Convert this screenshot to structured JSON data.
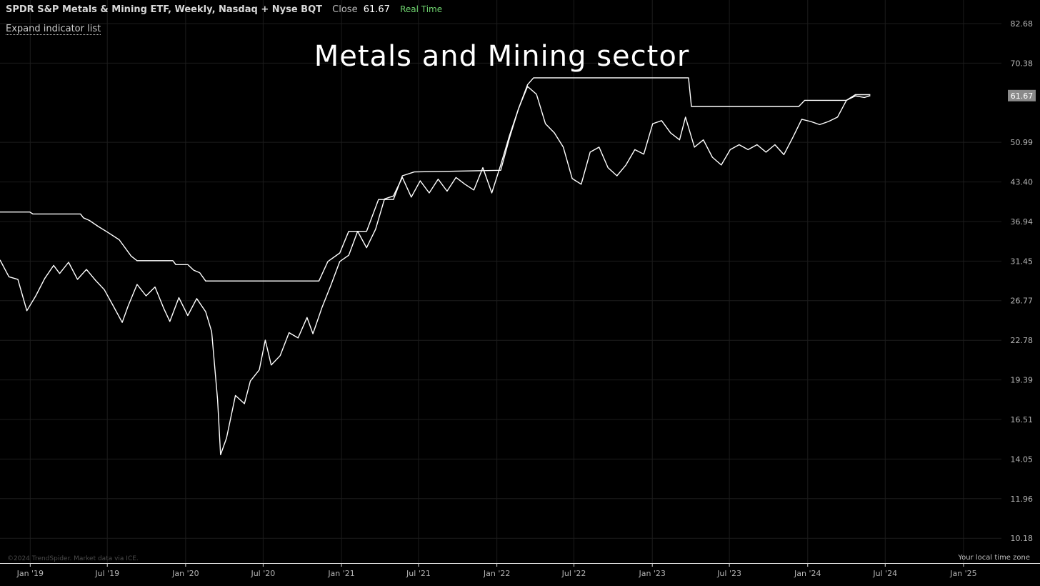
{
  "header": {
    "instrument": "SPDR S&P Metals & Mining ETF, Weekly, Nasdaq + Nyse BQT",
    "close_label": "Close",
    "close_value": "61.67",
    "realtime": "Real Time"
  },
  "expand_label": "Expand indicator list",
  "footer": {
    "credit": "©2024 TrendSpider. Market data via ICE.",
    "timezone": "Your local time zone"
  },
  "colors": {
    "background": "#000000",
    "line": "#ffffff",
    "grid": "#1c1c1c",
    "price_badge": "#8a8a8a",
    "realtime": "#6fd46f"
  },
  "chart_data": {
    "type": "line",
    "title": "Metals and Mining sector",
    "y_scale": "log",
    "ylim": [
      9.2,
      91.0
    ],
    "xlim": [
      "2018-10-22",
      "2025-03-31"
    ],
    "x_ticks": [
      {
        "label": "Jan '19",
        "date": "2019-01-01"
      },
      {
        "label": "Jul '19",
        "date": "2019-07-01"
      },
      {
        "label": "Jan '20",
        "date": "2020-01-01"
      },
      {
        "label": "Jul '20",
        "date": "2020-07-01"
      },
      {
        "label": "Jan '21",
        "date": "2021-01-01"
      },
      {
        "label": "Jul '21",
        "date": "2021-07-01"
      },
      {
        "label": "Jan '22",
        "date": "2022-01-01"
      },
      {
        "label": "Jul '22",
        "date": "2022-07-01"
      },
      {
        "label": "Jan '23",
        "date": "2023-01-01"
      },
      {
        "label": "Jul '23",
        "date": "2023-07-01"
      },
      {
        "label": "Jan '24",
        "date": "2024-01-01"
      },
      {
        "label": "Jul '24",
        "date": "2024-07-01"
      },
      {
        "label": "Jan '25",
        "date": "2025-01-01"
      }
    ],
    "y_ticks": [
      {
        "label": "82.68",
        "value": 82.68
      },
      {
        "label": "70.38",
        "value": 70.38
      },
      {
        "label": "50.99",
        "value": 50.99
      },
      {
        "label": "43.40",
        "value": 43.4
      },
      {
        "label": "36.94",
        "value": 36.94
      },
      {
        "label": "31.45",
        "value": 31.45
      },
      {
        "label": "26.77",
        "value": 26.77
      },
      {
        "label": "22.78",
        "value": 22.78
      },
      {
        "label": "19.39",
        "value": 19.39
      },
      {
        "label": "16.51",
        "value": 16.51
      },
      {
        "label": "14.05",
        "value": 14.05
      },
      {
        "label": "11.96",
        "value": 11.96
      },
      {
        "label": "10.18",
        "value": 10.18
      }
    ],
    "last_price": {
      "label": "61.67",
      "value": 61.67
    },
    "series": [
      {
        "role": "close",
        "points": [
          [
            "2018-10-22",
            31.6
          ],
          [
            "2018-11-12",
            29.5
          ],
          [
            "2018-12-03",
            29.2
          ],
          [
            "2018-12-24",
            25.7
          ],
          [
            "2019-01-14",
            27.3
          ],
          [
            "2019-02-04",
            29.3
          ],
          [
            "2019-02-25",
            30.9
          ],
          [
            "2019-03-11",
            29.9
          ],
          [
            "2019-04-01",
            31.3
          ],
          [
            "2019-04-22",
            29.2
          ],
          [
            "2019-05-13",
            30.4
          ],
          [
            "2019-06-03",
            29.1
          ],
          [
            "2019-06-24",
            28.0
          ],
          [
            "2019-07-15",
            26.2
          ],
          [
            "2019-08-05",
            24.5
          ],
          [
            "2019-08-19",
            26.2
          ],
          [
            "2019-09-09",
            28.6
          ],
          [
            "2019-09-30",
            27.3
          ],
          [
            "2019-10-21",
            28.3
          ],
          [
            "2019-11-11",
            25.9
          ],
          [
            "2019-11-25",
            24.6
          ],
          [
            "2019-12-16",
            27.1
          ],
          [
            "2020-01-06",
            25.2
          ],
          [
            "2020-01-27",
            27.0
          ],
          [
            "2020-02-17",
            25.6
          ],
          [
            "2020-03-02",
            23.6
          ],
          [
            "2020-03-16",
            17.9
          ],
          [
            "2020-03-23",
            14.3
          ],
          [
            "2020-04-06",
            15.3
          ],
          [
            "2020-04-27",
            18.2
          ],
          [
            "2020-05-18",
            17.6
          ],
          [
            "2020-06-01",
            19.3
          ],
          [
            "2020-06-22",
            20.2
          ],
          [
            "2020-07-06",
            22.8
          ],
          [
            "2020-07-20",
            20.6
          ],
          [
            "2020-08-10",
            21.4
          ],
          [
            "2020-08-31",
            23.5
          ],
          [
            "2020-09-21",
            23.0
          ],
          [
            "2020-10-12",
            25.0
          ],
          [
            "2020-10-26",
            23.4
          ],
          [
            "2020-11-16",
            26.0
          ],
          [
            "2020-12-07",
            28.5
          ],
          [
            "2020-12-28",
            31.4
          ],
          [
            "2021-01-18",
            32.2
          ],
          [
            "2021-02-08",
            35.5
          ],
          [
            "2021-03-01",
            33.2
          ],
          [
            "2021-03-22",
            35.8
          ],
          [
            "2021-04-12",
            40.5
          ],
          [
            "2021-05-03",
            41.0
          ],
          [
            "2021-05-24",
            44.2
          ],
          [
            "2021-06-14",
            40.8
          ],
          [
            "2021-07-05",
            43.6
          ],
          [
            "2021-07-26",
            41.5
          ],
          [
            "2021-08-16",
            43.9
          ],
          [
            "2021-09-06",
            41.8
          ],
          [
            "2021-09-27",
            44.2
          ],
          [
            "2021-10-18",
            43.0
          ],
          [
            "2021-11-08",
            42.0
          ],
          [
            "2021-11-29",
            46.0
          ],
          [
            "2021-12-20",
            41.5
          ],
          [
            "2022-01-10",
            46.5
          ],
          [
            "2022-01-31",
            52.5
          ],
          [
            "2022-02-21",
            58.5
          ],
          [
            "2022-03-14",
            64.0
          ],
          [
            "2022-04-04",
            62.0
          ],
          [
            "2022-04-25",
            55.0
          ],
          [
            "2022-05-16",
            53.0
          ],
          [
            "2022-06-06",
            50.0
          ],
          [
            "2022-06-27",
            44.0
          ],
          [
            "2022-07-18",
            43.0
          ],
          [
            "2022-08-08",
            49.0
          ],
          [
            "2022-08-29",
            50.0
          ],
          [
            "2022-09-19",
            46.0
          ],
          [
            "2022-10-10",
            44.5
          ],
          [
            "2022-10-31",
            46.5
          ],
          [
            "2022-11-21",
            49.5
          ],
          [
            "2022-12-12",
            48.6
          ],
          [
            "2023-01-02",
            55.0
          ],
          [
            "2023-01-23",
            55.7
          ],
          [
            "2023-02-13",
            53.0
          ],
          [
            "2023-03-06",
            51.5
          ],
          [
            "2023-03-20",
            56.5
          ],
          [
            "2023-04-10",
            50.0
          ],
          [
            "2023-05-01",
            51.5
          ],
          [
            "2023-05-22",
            48.0
          ],
          [
            "2023-06-12",
            46.5
          ],
          [
            "2023-07-03",
            49.5
          ],
          [
            "2023-07-24",
            50.5
          ],
          [
            "2023-08-14",
            49.5
          ],
          [
            "2023-09-04",
            50.5
          ],
          [
            "2023-09-25",
            49.0
          ],
          [
            "2023-10-16",
            50.5
          ],
          [
            "2023-11-06",
            48.5
          ],
          [
            "2023-11-27",
            52.0
          ],
          [
            "2023-12-18",
            56.0
          ],
          [
            "2024-01-08",
            55.5
          ],
          [
            "2024-01-29",
            54.8
          ],
          [
            "2024-02-19",
            55.5
          ],
          [
            "2024-03-11",
            56.5
          ],
          [
            "2024-04-01",
            60.5
          ],
          [
            "2024-04-22",
            61.6
          ],
          [
            "2024-05-13",
            61.2
          ],
          [
            "2024-05-27",
            61.67
          ]
        ]
      },
      {
        "role": "upper-trailing-high",
        "points": [
          [
            "2018-10-22",
            38.4
          ],
          [
            "2018-12-31",
            38.4
          ],
          [
            "2019-01-07",
            38.1
          ],
          [
            "2019-04-29",
            38.1
          ],
          [
            "2019-05-06",
            37.5
          ],
          [
            "2019-05-20",
            37.1
          ],
          [
            "2019-06-10",
            36.2
          ],
          [
            "2019-07-01",
            35.4
          ],
          [
            "2019-07-29",
            34.3
          ],
          [
            "2019-08-26",
            32.1
          ],
          [
            "2019-09-09",
            31.5
          ],
          [
            "2019-12-02",
            31.5
          ],
          [
            "2019-12-09",
            31.0
          ],
          [
            "2020-01-06",
            31.0
          ],
          [
            "2020-01-20",
            30.3
          ],
          [
            "2020-02-03",
            30.0
          ],
          [
            "2020-02-17",
            29.0
          ],
          [
            "2020-11-09",
            29.0
          ],
          [
            "2020-11-30",
            31.4
          ],
          [
            "2020-12-28",
            32.5
          ],
          [
            "2021-01-18",
            35.5
          ],
          [
            "2021-03-01",
            35.5
          ],
          [
            "2021-03-29",
            40.4
          ],
          [
            "2021-05-03",
            40.4
          ],
          [
            "2021-05-24",
            44.5
          ],
          [
            "2021-06-21",
            45.2
          ],
          [
            "2022-01-10",
            45.5
          ],
          [
            "2022-01-31",
            52.0
          ],
          [
            "2022-02-21",
            58.5
          ],
          [
            "2022-03-14",
            64.5
          ],
          [
            "2022-03-28",
            66.3
          ],
          [
            "2023-03-27",
            66.3
          ],
          [
            "2023-04-03",
            59.0
          ],
          [
            "2023-12-11",
            59.0
          ],
          [
            "2023-12-25",
            60.5
          ],
          [
            "2024-04-01",
            60.5
          ],
          [
            "2024-04-22",
            61.9
          ],
          [
            "2024-05-27",
            61.9
          ]
        ]
      }
    ]
  }
}
